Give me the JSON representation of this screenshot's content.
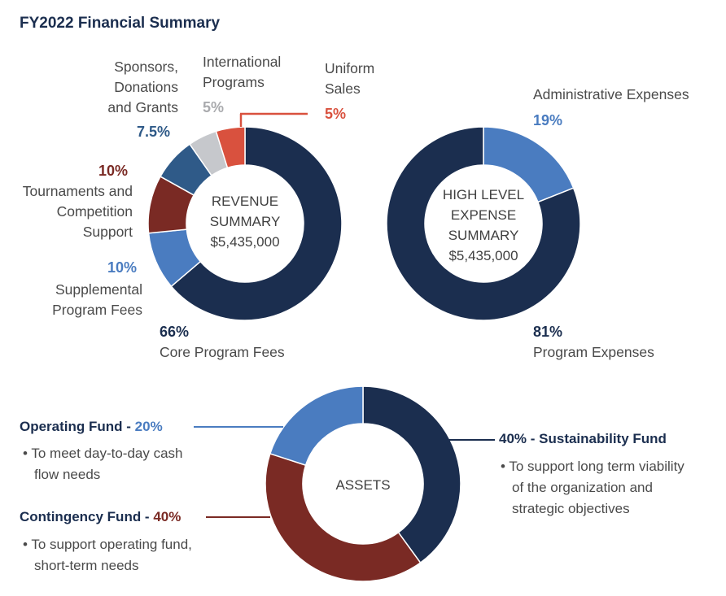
{
  "title": "FY2022 Financial Summary",
  "chart_data": [
    {
      "type": "pie",
      "name": "revenue",
      "center_label": [
        "REVENUE",
        "SUMMARY",
        "$5,435,000"
      ],
      "categories": [
        "Core Program Fees",
        "Supplemental Program Fees",
        "Tournaments and Competition Support",
        "Sponsors, Donations and Grants",
        "International Programs",
        "Uniform Sales"
      ],
      "values": [
        66,
        10,
        10,
        7.5,
        5,
        5
      ],
      "value_labels": [
        "66%",
        "10%",
        "10%",
        "7.5%",
        "5%",
        "5%"
      ],
      "colors": [
        "#1b2e4f",
        "#4a7cc0",
        "#7a2a24",
        "#2f5a88",
        "#c6c8cc",
        "#d9513e"
      ],
      "labels": {
        "core": [
          "Core Program Fees"
        ],
        "supplemental": [
          "Supplemental",
          "Program Fees"
        ],
        "tournaments": [
          "Tournaments and",
          "Competition",
          "Support"
        ],
        "sponsors": [
          "Sponsors,",
          "Donations",
          "and Grants"
        ],
        "international": [
          "International",
          "Programs"
        ],
        "uniform": [
          "Uniform",
          "Sales"
        ]
      }
    },
    {
      "type": "pie",
      "name": "expense",
      "center_label": [
        "HIGH LEVEL",
        "EXPENSE",
        "SUMMARY",
        "$5,435,000"
      ],
      "categories": [
        "Administrative Expenses",
        "Program Expenses"
      ],
      "values": [
        19,
        81
      ],
      "value_labels": [
        "19%",
        "81%"
      ],
      "colors": [
        "#4a7cc0",
        "#1b2e4f"
      ]
    },
    {
      "type": "pie",
      "name": "assets",
      "center_label": [
        "ASSETS"
      ],
      "categories": [
        "Sustainability Fund",
        "Contingency Fund",
        "Operating Fund"
      ],
      "values": [
        40,
        40,
        20
      ],
      "value_labels": [
        "40%",
        "40%",
        "20%"
      ],
      "colors": [
        "#1b2e4f",
        "#7a2a24",
        "#4a7cc0"
      ],
      "legend": {
        "operating": {
          "name": "Operating Fund - ",
          "pct": "20%",
          "bullets": [
            "• To meet day-to-day cash",
            "flow needs"
          ]
        },
        "contingency": {
          "name": "Contingency Fund - ",
          "pct": "40%",
          "bullets": [
            "• To support operating fund,",
            "short-term needs"
          ]
        },
        "sustainability": {
          "pct": "40%",
          "name": " - Sustainability Fund",
          "bullets": [
            "• To support long term viability",
            "of the organization and",
            "strategic objectives"
          ]
        }
      }
    }
  ]
}
